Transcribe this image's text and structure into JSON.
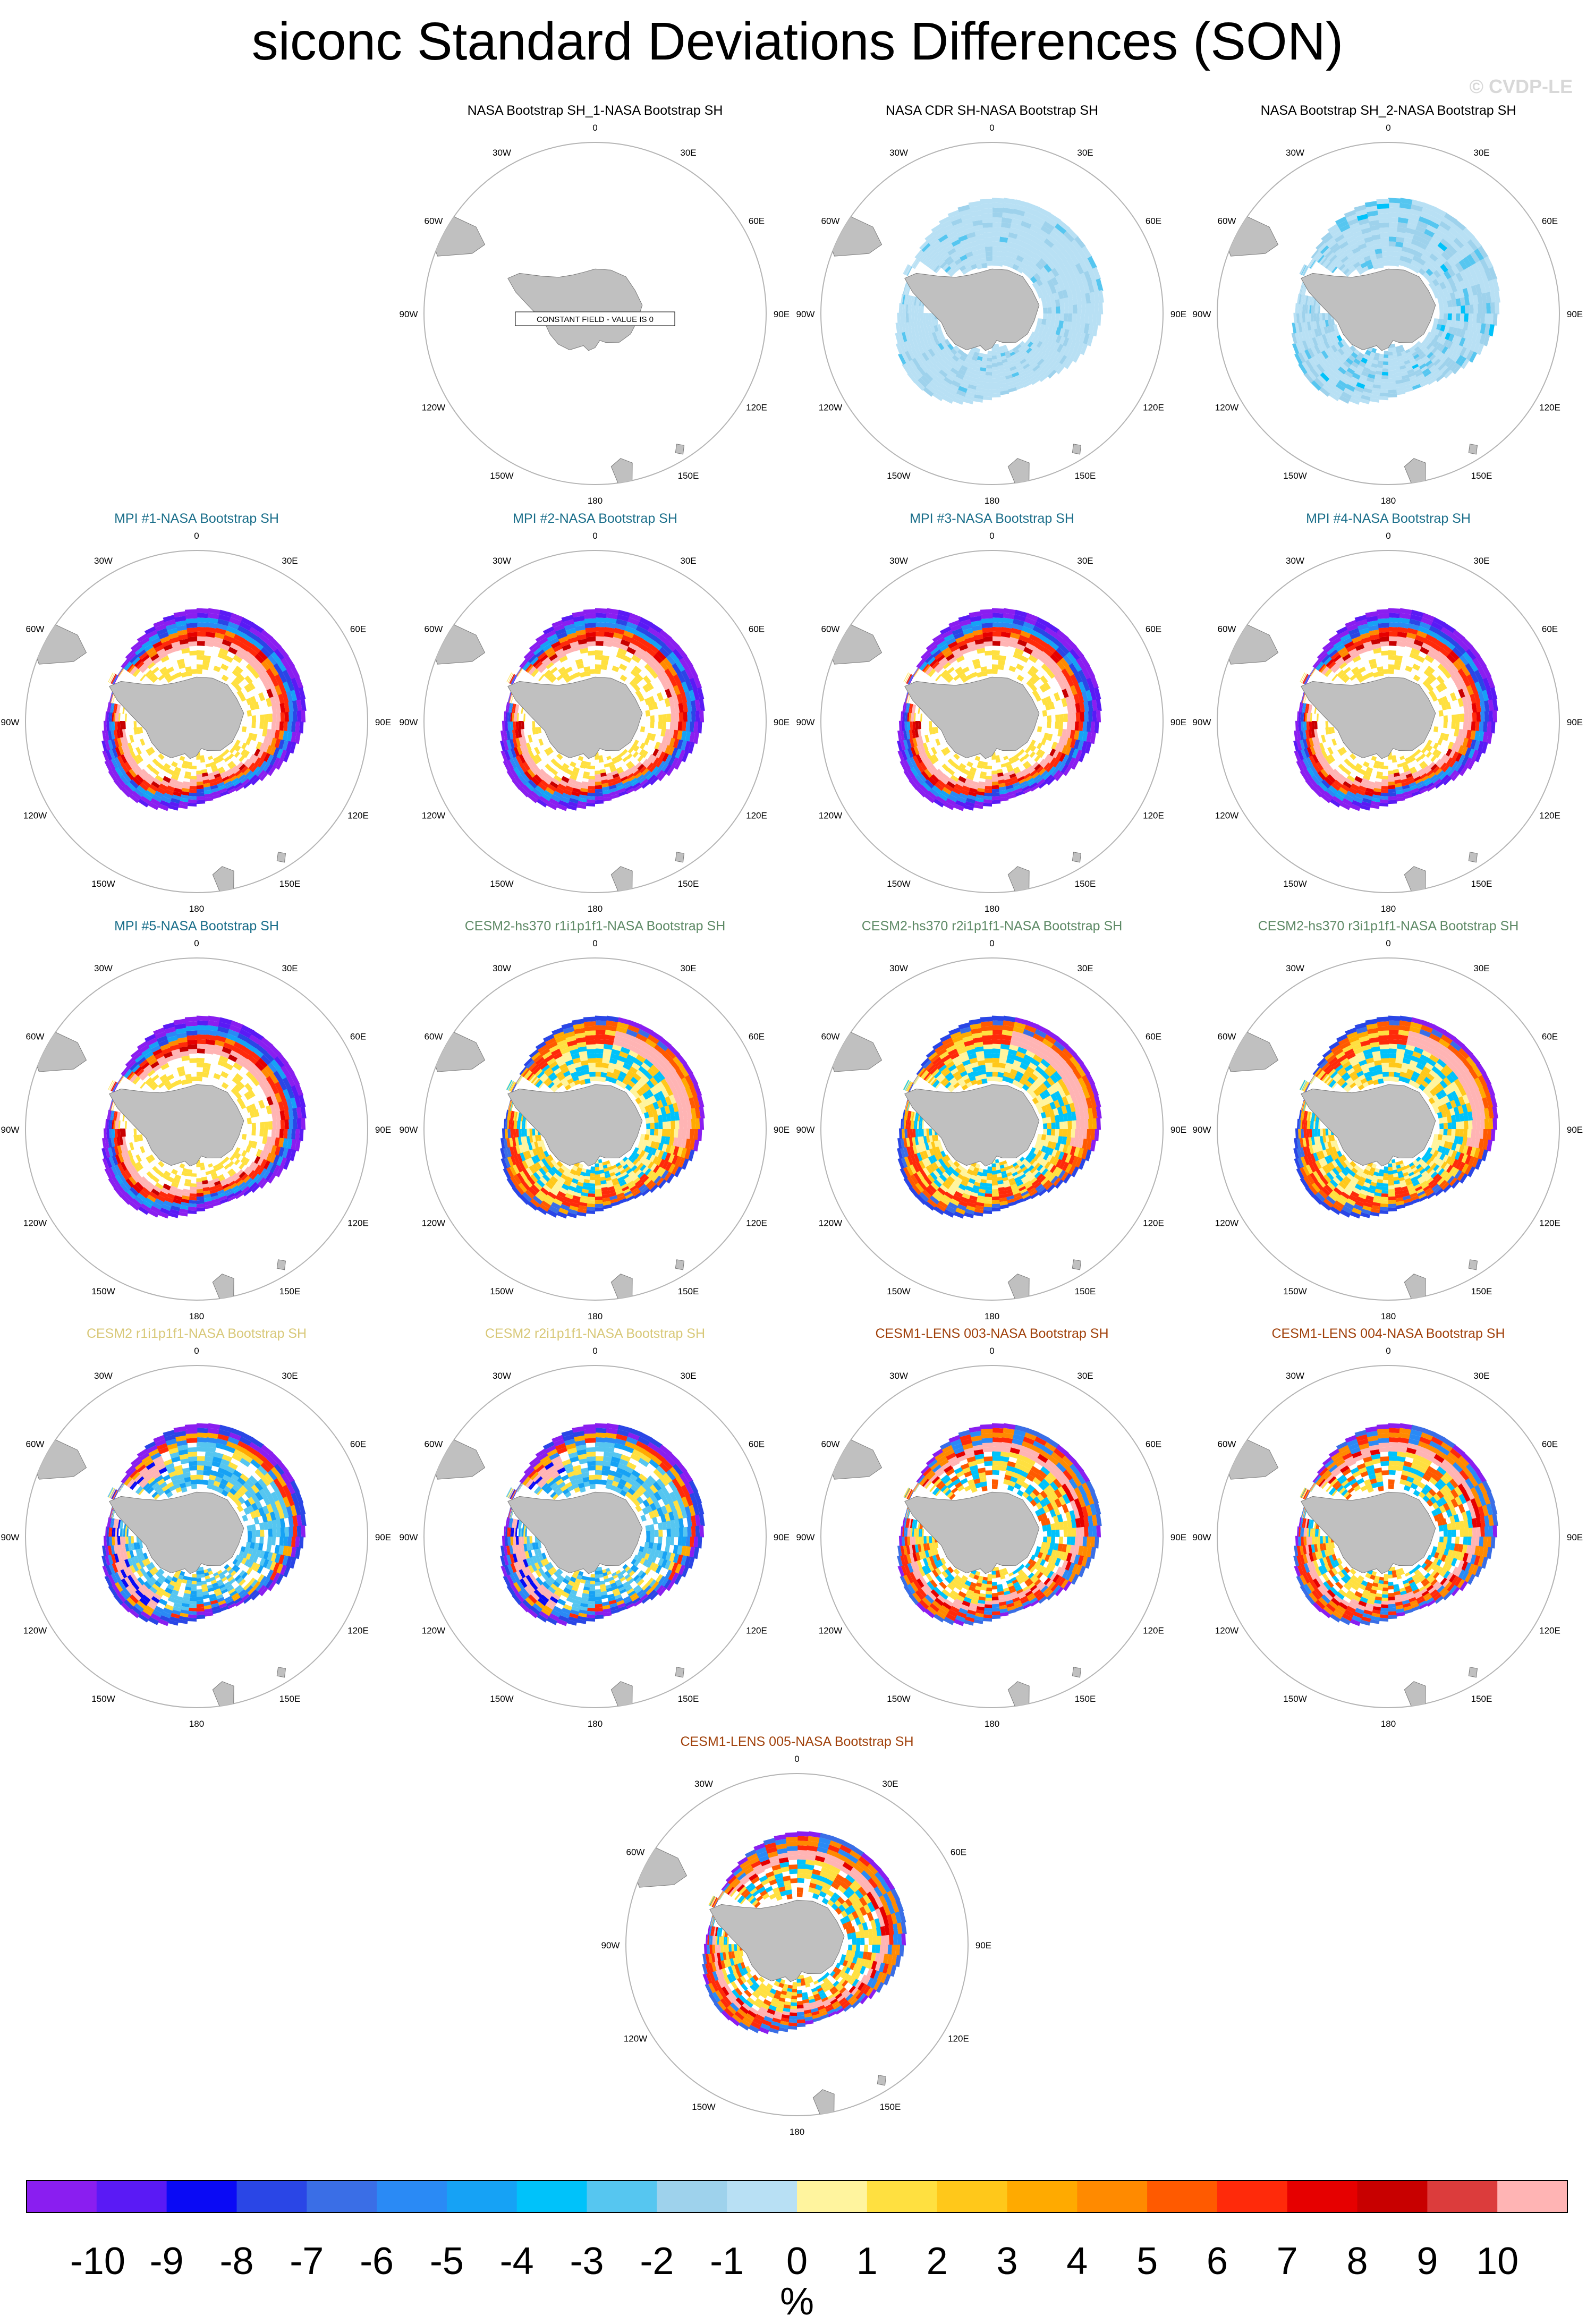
{
  "title": "siconc Standard Deviations Differences (SON)",
  "watermark": "© CVDP-LE",
  "constant_field_note": "CONSTANT FIELD - VALUE IS 0",
  "lon_labels": [
    "0",
    "30E",
    "60E",
    "90E",
    "120E",
    "150E",
    "180",
    "150W",
    "120W",
    "90W",
    "60W",
    "30W"
  ],
  "land_color": "#c0c0c0",
  "chart_data": {
    "type": "heatmap",
    "projection": "south polar stereographic",
    "variable": "siconc",
    "season": "SON",
    "units": "%",
    "colorbar": {
      "levels": [
        "-10",
        "-9",
        "-8",
        "-7",
        "-6",
        "-5",
        "-4",
        "-3",
        "-2",
        "-1",
        "0",
        "1",
        "2",
        "3",
        "4",
        "5",
        "6",
        "7",
        "8",
        "9",
        "10"
      ],
      "colors": [
        "#8a1ef0",
        "#5a1af5",
        "#0a0af5",
        "#2a46e6",
        "#3a6ee6",
        "#2a8af5",
        "#16a2f5",
        "#00c2fa",
        "#56c6f0",
        "#9ed2ec",
        "#b8e0f4",
        "#fff49e",
        "#ffe040",
        "#ffc81a",
        "#ffaa00",
        "#ff8a00",
        "#ff5a00",
        "#ff2a0a",
        "#e60000",
        "#c80000",
        "#dc3c3c",
        "#ffb4b4"
      ],
      "unit": "%"
    },
    "panels": [
      {
        "title": "NASA Bootstrap SH_1-NASA Bootstrap SH",
        "color": "#000000",
        "pattern": "constant",
        "value": 0
      },
      {
        "title": "NASA CDR SH-NASA Bootstrap SH",
        "color": "#000000",
        "pattern": "obs_cdr"
      },
      {
        "title": "NASA Bootstrap SH_2-NASA Bootstrap SH",
        "color": "#000000",
        "pattern": "obs_bs2"
      },
      {
        "title": "MPI #1-NASA Bootstrap SH",
        "color": "#1a6e8a",
        "pattern": "mpi"
      },
      {
        "title": "MPI #2-NASA Bootstrap SH",
        "color": "#1a6e8a",
        "pattern": "mpi"
      },
      {
        "title": "MPI #3-NASA Bootstrap SH",
        "color": "#1a6e8a",
        "pattern": "mpi"
      },
      {
        "title": "MPI #4-NASA Bootstrap SH",
        "color": "#1a6e8a",
        "pattern": "mpi"
      },
      {
        "title": "MPI #5-NASA Bootstrap SH",
        "color": "#1a6e8a",
        "pattern": "mpi"
      },
      {
        "title": "CESM2-hs370 r1i1p1f1-NASA Bootstrap SH",
        "color": "#5e8a66",
        "pattern": "hs370"
      },
      {
        "title": "CESM2-hs370 r2i1p1f1-NASA Bootstrap SH",
        "color": "#5e8a66",
        "pattern": "hs370"
      },
      {
        "title": "CESM2-hs370 r3i1p1f1-NASA Bootstrap SH",
        "color": "#5e8a66",
        "pattern": "hs370"
      },
      {
        "title": "CESM2 r1i1p1f1-NASA Bootstrap SH",
        "color": "#d8c878",
        "pattern": "cesm2"
      },
      {
        "title": "CESM2 r2i1p1f1-NASA Bootstrap SH",
        "color": "#d8c878",
        "pattern": "cesm2"
      },
      {
        "title": "CESM1-LENS 003-NASA Bootstrap SH",
        "color": "#a0400a",
        "pattern": "lens"
      },
      {
        "title": "CESM1-LENS 004-NASA Bootstrap SH",
        "color": "#a0400a",
        "pattern": "lens"
      },
      {
        "title": "CESM1-LENS 005-NASA Bootstrap SH",
        "color": "#a0400a",
        "pattern": "lens"
      }
    ]
  }
}
